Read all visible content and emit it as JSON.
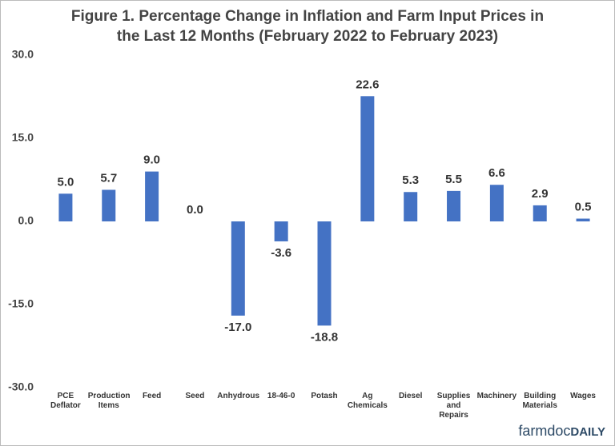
{
  "chart_data": {
    "type": "bar",
    "title": [
      "Figure 1.  Percentage  Change  in Inflation  and Farm Input Prices in",
      "the Last 12 Months  (February  2022 to February  2023)"
    ],
    "categories": [
      "PCE Deflator",
      "Production Items",
      "Feed",
      "Seed",
      "Anhydrous",
      "18-46-0",
      "Potash",
      "Ag Chemicals",
      "Diesel",
      "Supplies and Repairs",
      "Machinery",
      "Building Materials",
      "Wages"
    ],
    "values": [
      5.0,
      5.7,
      9.0,
      0.0,
      -17.0,
      -3.6,
      -18.8,
      22.6,
      5.3,
      5.5,
      6.6,
      2.9,
      0.5
    ],
    "value_labels": [
      "5.0",
      "5.7",
      "9.0",
      "0.0",
      "-17.0",
      "-3.6",
      "-18.8",
      "22.6",
      "5.3",
      "5.5",
      "6.6",
      "2.9",
      "0.5"
    ],
    "color": "#4472c4",
    "ylim": [
      -30,
      30
    ],
    "yticks": [
      {
        "value": -30,
        "label": "-30.0"
      },
      {
        "value": -15,
        "label": "-15.0"
      },
      {
        "value": 0,
        "label": "0.0"
      },
      {
        "value": 15,
        "label": "15.0"
      },
      {
        "value": 30,
        "label": "30.0"
      }
    ],
    "grid": false
  },
  "branding": [
    "farmdoc",
    "DAILY"
  ]
}
